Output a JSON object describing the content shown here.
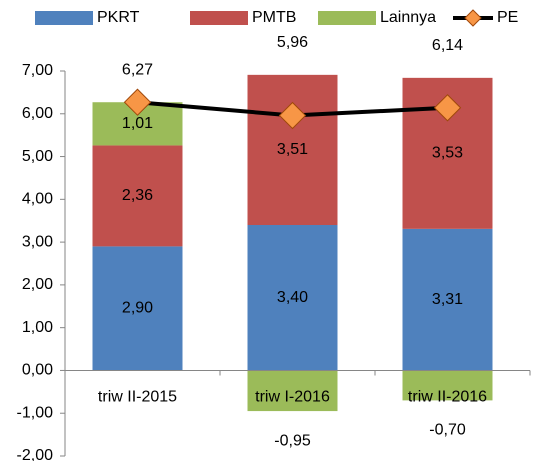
{
  "chart_data": {
    "type": "stacked_bar_line",
    "categories": [
      "triw II-2015",
      "triw I-2016",
      "triw II-2016"
    ],
    "series": [
      {
        "name": "PKRT",
        "type": "bar",
        "color": "#4f81bd",
        "values": [
          2.9,
          3.4,
          3.31
        ],
        "value_labels": [
          "2,90",
          "3,40",
          "3,31"
        ]
      },
      {
        "name": "PMTB",
        "type": "bar",
        "color": "#c0504d",
        "values": [
          2.36,
          3.51,
          3.53
        ],
        "value_labels": [
          "2,36",
          "3,51",
          "3,53"
        ]
      },
      {
        "name": "Lainnya",
        "type": "bar",
        "color": "#9bbb59",
        "values": [
          1.01,
          -0.95,
          -0.7
        ],
        "value_labels": [
          "1,01",
          "-0,95",
          "-0,70"
        ]
      },
      {
        "name": "PE",
        "type": "line",
        "color": "#000000",
        "marker_color": "#f79646",
        "values": [
          6.27,
          5.96,
          6.14
        ],
        "value_labels": [
          "6,27",
          "5,96",
          "6,14"
        ]
      }
    ],
    "ylim": [
      -2,
      7
    ],
    "yticks": [
      {
        "value": -2,
        "label": "-2,00"
      },
      {
        "value": -1,
        "label": "-1,00"
      },
      {
        "value": 0,
        "label": "0,00"
      },
      {
        "value": 1,
        "label": "1,00"
      },
      {
        "value": 2,
        "label": "2,00"
      },
      {
        "value": 3,
        "label": "3,00"
      },
      {
        "value": 4,
        "label": "4,00"
      },
      {
        "value": 5,
        "label": "5,00"
      },
      {
        "value": 6,
        "label": "6,00"
      },
      {
        "value": 7,
        "label": "7,00"
      }
    ],
    "grid": false,
    "legend": "top"
  }
}
